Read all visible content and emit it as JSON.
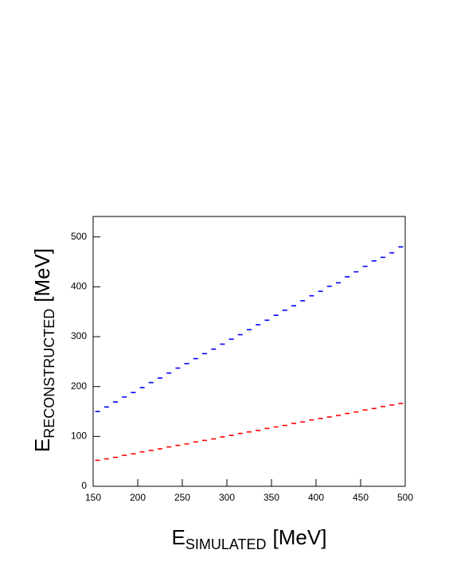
{
  "chart_data": {
    "type": "scatter",
    "x_label": {
      "main": "E",
      "sub": "SIMULATED",
      "unit": "[MeV]"
    },
    "y_label": {
      "main": "E",
      "sub": "RECONSTRUCTED",
      "unit": "[MeV]"
    },
    "x": [
      155,
      165,
      175,
      185,
      195,
      205,
      215,
      225,
      235,
      245,
      255,
      265,
      275,
      285,
      295,
      305,
      315,
      325,
      335,
      345,
      355,
      365,
      375,
      385,
      395,
      405,
      415,
      425,
      435,
      445,
      455,
      465,
      475,
      485,
      495
    ],
    "series": [
      {
        "color": "#0000ff",
        "values": [
          150,
          159,
          169,
          179,
          188,
          198,
          208,
          217,
          227,
          237,
          246,
          256,
          266,
          275,
          285,
          295,
          304,
          314,
          324,
          333,
          343,
          353,
          362,
          372,
          382,
          391,
          401,
          408,
          420,
          430,
          441,
          452,
          459,
          468,
          480
        ]
      },
      {
        "color": "#ff0000",
        "values": [
          52,
          55,
          58,
          62,
          65,
          69,
          72,
          75,
          79,
          82,
          85,
          89,
          92,
          95,
          99,
          102,
          106,
          109,
          112,
          116,
          119,
          122,
          126,
          129,
          133,
          136,
          139,
          142,
          146,
          149,
          153,
          156,
          160,
          163,
          166
        ]
      }
    ],
    "xlim": [
      150,
      500
    ],
    "ylim": [
      0,
      541
    ],
    "xticks": [
      150,
      200,
      250,
      300,
      350,
      400,
      450,
      500
    ],
    "yticks": [
      0,
      100,
      200,
      300,
      400,
      500
    ]
  }
}
